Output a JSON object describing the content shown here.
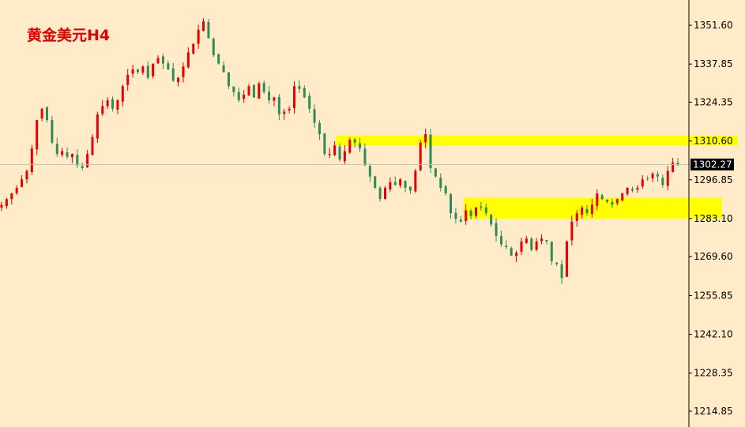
{
  "title": "黄金美元H4",
  "chart_data": {
    "type": "candlestick",
    "symbol": "黄金美元H4",
    "y_ticks": [
      "1351.60",
      "1337.85",
      "1324.35",
      "1310.60",
      "1296.85",
      "1283.10",
      "1269.60",
      "1255.85",
      "1242.10",
      "1228.35",
      "1214.85"
    ],
    "ylim": [
      1212,
      1358
    ],
    "current_price": "1302.27",
    "colors": {
      "up": "#e60000",
      "down": "#2e8b57",
      "zone": "#ffff00",
      "background": "#ffebc8",
      "price_label_bg": "#000000"
    },
    "zones": [
      {
        "from": 1309,
        "to": 1312.5
      },
      {
        "from": 1283,
        "to": 1290.5
      }
    ],
    "candles": [
      1288,
      1290,
      1292,
      1294,
      1297,
      1300,
      1308,
      1318,
      1322,
      1318,
      1310,
      1306,
      1307,
      1305,
      1306,
      1302,
      1301,
      1306,
      1312,
      1320,
      1323,
      1325,
      1322,
      1325,
      1330,
      1334,
      1336,
      1335,
      1337,
      1333,
      1338,
      1340,
      1338,
      1336,
      1332,
      1333,
      1337,
      1342,
      1345,
      1350,
      1353,
      1347,
      1341,
      1338,
      1335,
      1330,
      1328,
      1325,
      1327,
      1330,
      1326,
      1331,
      1328,
      1325,
      1326,
      1320,
      1321,
      1322,
      1330,
      1329,
      1326,
      1322,
      1317,
      1313,
      1306,
      1306,
      1309,
      1304,
      1307,
      1311,
      1310,
      1308,
      1302,
      1298,
      1294,
      1290,
      1294,
      1296,
      1295,
      1297,
      1294,
      1293,
      1300,
      1310,
      1313,
      1301,
      1298,
      1294,
      1292,
      1285,
      1283,
      1282,
      1286,
      1284,
      1287,
      1287,
      1285,
      1281,
      1277,
      1274,
      1273,
      1270,
      1271,
      1275,
      1276,
      1272,
      1275,
      1276,
      1275,
      1268,
      1267,
      1262,
      1275,
      1282,
      1285,
      1287,
      1285,
      1288,
      1292,
      1290,
      1289,
      1288,
      1290,
      1292,
      1294,
      1293,
      1294,
      1297,
      1297,
      1299,
      1298,
      1295,
      1300,
      1303,
      1302
    ]
  }
}
